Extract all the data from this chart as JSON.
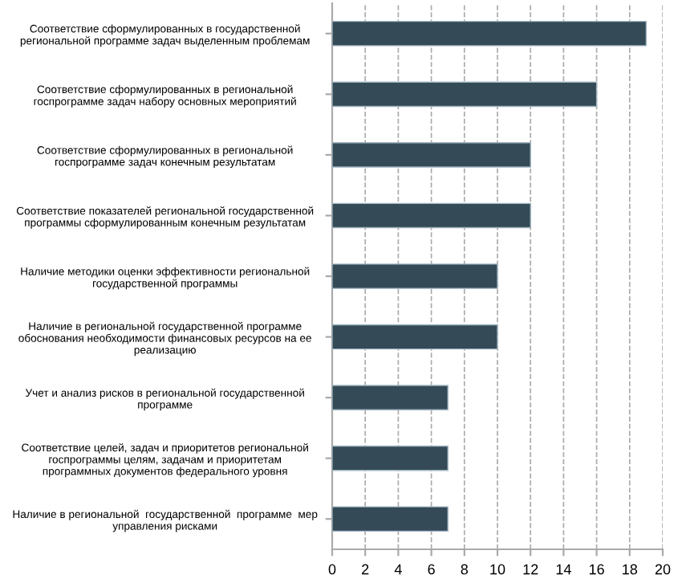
{
  "chart_data": {
    "type": "bar",
    "orientation": "horizontal",
    "categories": [
      "Соответствие сформулированных в государственной\nрегиональной программе задач выделенным проблемам",
      "Соответствие сформулированных в региональной\nгоспрограмме задач набору основных мероприятий",
      "Соответствие сформулированных в региональной\nгоспрограмме задач конечным результатам",
      "Соответствие показателей региональной государственной\nпрограммы сформулированным конечным результатам",
      "Наличие методики оценки эффективности региональной\nгосударственной программы",
      "Наличие в региональной государственной программе\nобоснования необходимости финансовых ресурсов на ее\nреализацию",
      "Учет и анализ рисков в региональной государственной\nпрограмме",
      "Соответствие целей, задач и приоритетов региональной\nгоспрограммы целям, задачам и приоритетам\nпрограммных документов федерального уровня",
      "Наличие в региональной  государственной  программе  мер\nуправления рисками"
    ],
    "values": [
      19,
      16,
      12,
      12,
      10,
      10,
      7,
      7,
      7
    ],
    "color": "#344a57",
    "xlim": [
      0,
      20
    ],
    "xticks": [
      0,
      2,
      4,
      6,
      8,
      10,
      12,
      14,
      16,
      18,
      20
    ],
    "grid": "x",
    "line_style": "dashed"
  }
}
